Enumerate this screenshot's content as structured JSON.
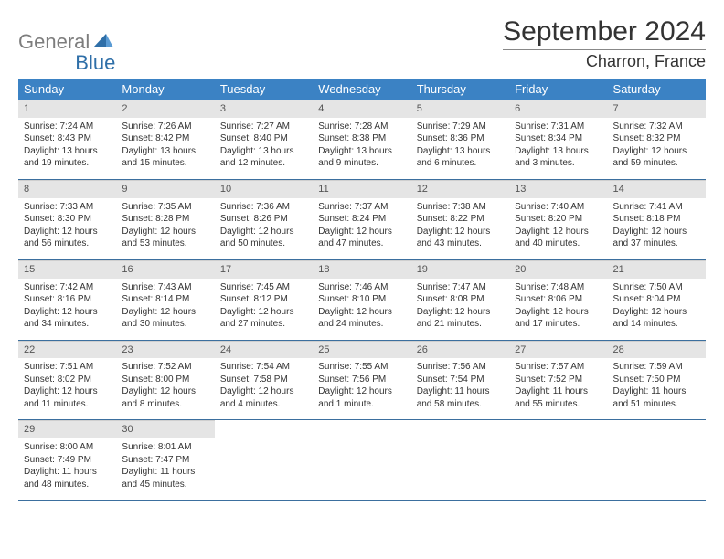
{
  "logo": {
    "word1": "General",
    "word2": "Blue",
    "icon_color": "#2f6fa8"
  },
  "title": "September 2024",
  "location": "Charron, France",
  "colors": {
    "header_bg": "#3b82c4",
    "header_text": "#ffffff",
    "daynum_bg": "#e5e5e5",
    "row_border": "#3b6f9e",
    "text": "#333333"
  },
  "weekdays": [
    "Sunday",
    "Monday",
    "Tuesday",
    "Wednesday",
    "Thursday",
    "Friday",
    "Saturday"
  ],
  "weeks": [
    [
      {
        "n": "1",
        "sr": "7:24 AM",
        "ss": "8:43 PM",
        "dl": "13 hours and 19 minutes."
      },
      {
        "n": "2",
        "sr": "7:26 AM",
        "ss": "8:42 PM",
        "dl": "13 hours and 15 minutes."
      },
      {
        "n": "3",
        "sr": "7:27 AM",
        "ss": "8:40 PM",
        "dl": "13 hours and 12 minutes."
      },
      {
        "n": "4",
        "sr": "7:28 AM",
        "ss": "8:38 PM",
        "dl": "13 hours and 9 minutes."
      },
      {
        "n": "5",
        "sr": "7:29 AM",
        "ss": "8:36 PM",
        "dl": "13 hours and 6 minutes."
      },
      {
        "n": "6",
        "sr": "7:31 AM",
        "ss": "8:34 PM",
        "dl": "13 hours and 3 minutes."
      },
      {
        "n": "7",
        "sr": "7:32 AM",
        "ss": "8:32 PM",
        "dl": "12 hours and 59 minutes."
      }
    ],
    [
      {
        "n": "8",
        "sr": "7:33 AM",
        "ss": "8:30 PM",
        "dl": "12 hours and 56 minutes."
      },
      {
        "n": "9",
        "sr": "7:35 AM",
        "ss": "8:28 PM",
        "dl": "12 hours and 53 minutes."
      },
      {
        "n": "10",
        "sr": "7:36 AM",
        "ss": "8:26 PM",
        "dl": "12 hours and 50 minutes."
      },
      {
        "n": "11",
        "sr": "7:37 AM",
        "ss": "8:24 PM",
        "dl": "12 hours and 47 minutes."
      },
      {
        "n": "12",
        "sr": "7:38 AM",
        "ss": "8:22 PM",
        "dl": "12 hours and 43 minutes."
      },
      {
        "n": "13",
        "sr": "7:40 AM",
        "ss": "8:20 PM",
        "dl": "12 hours and 40 minutes."
      },
      {
        "n": "14",
        "sr": "7:41 AM",
        "ss": "8:18 PM",
        "dl": "12 hours and 37 minutes."
      }
    ],
    [
      {
        "n": "15",
        "sr": "7:42 AM",
        "ss": "8:16 PM",
        "dl": "12 hours and 34 minutes."
      },
      {
        "n": "16",
        "sr": "7:43 AM",
        "ss": "8:14 PM",
        "dl": "12 hours and 30 minutes."
      },
      {
        "n": "17",
        "sr": "7:45 AM",
        "ss": "8:12 PM",
        "dl": "12 hours and 27 minutes."
      },
      {
        "n": "18",
        "sr": "7:46 AM",
        "ss": "8:10 PM",
        "dl": "12 hours and 24 minutes."
      },
      {
        "n": "19",
        "sr": "7:47 AM",
        "ss": "8:08 PM",
        "dl": "12 hours and 21 minutes."
      },
      {
        "n": "20",
        "sr": "7:48 AM",
        "ss": "8:06 PM",
        "dl": "12 hours and 17 minutes."
      },
      {
        "n": "21",
        "sr": "7:50 AM",
        "ss": "8:04 PM",
        "dl": "12 hours and 14 minutes."
      }
    ],
    [
      {
        "n": "22",
        "sr": "7:51 AM",
        "ss": "8:02 PM",
        "dl": "12 hours and 11 minutes."
      },
      {
        "n": "23",
        "sr": "7:52 AM",
        "ss": "8:00 PM",
        "dl": "12 hours and 8 minutes."
      },
      {
        "n": "24",
        "sr": "7:54 AM",
        "ss": "7:58 PM",
        "dl": "12 hours and 4 minutes."
      },
      {
        "n": "25",
        "sr": "7:55 AM",
        "ss": "7:56 PM",
        "dl": "12 hours and 1 minute."
      },
      {
        "n": "26",
        "sr": "7:56 AM",
        "ss": "7:54 PM",
        "dl": "11 hours and 58 minutes."
      },
      {
        "n": "27",
        "sr": "7:57 AM",
        "ss": "7:52 PM",
        "dl": "11 hours and 55 minutes."
      },
      {
        "n": "28",
        "sr": "7:59 AM",
        "ss": "7:50 PM",
        "dl": "11 hours and 51 minutes."
      }
    ],
    [
      {
        "n": "29",
        "sr": "8:00 AM",
        "ss": "7:49 PM",
        "dl": "11 hours and 48 minutes."
      },
      {
        "n": "30",
        "sr": "8:01 AM",
        "ss": "7:47 PM",
        "dl": "11 hours and 45 minutes."
      },
      null,
      null,
      null,
      null,
      null
    ]
  ],
  "labels": {
    "sunrise": "Sunrise:",
    "sunset": "Sunset:",
    "daylight": "Daylight:"
  }
}
